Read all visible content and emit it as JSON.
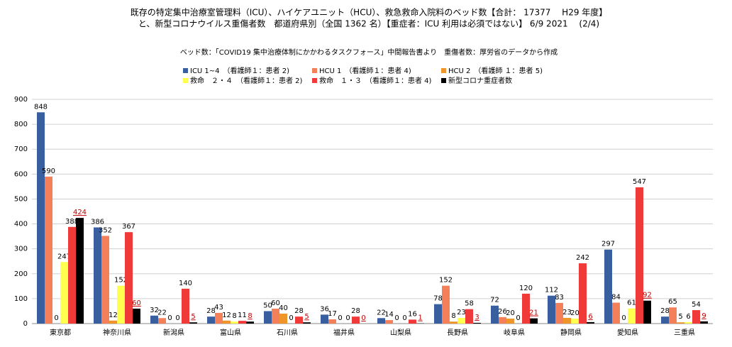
{
  "chart_data": {
    "type": "bar",
    "title": "既存の特定集中治療室管理料（ICU）、ハイケアユニット（HCU）、救急救命入院料のベッド数【合計： 17377　 H29 年度】",
    "title_line2": "と、新型コロナウイルス重傷者数　都道府県別（全国 1362 名）【重症者：ICU 利用は必須ではない】 6/9 2021　 (2/4)",
    "subtitle": "ベッド数：「COVID19 集中治療体制にかかわるタスクフォース」中間報告書より　重傷者数：厚労省のデータから作成",
    "categories": [
      "東京都",
      "神奈川県",
      "新潟県",
      "富山県",
      "石川県",
      "福井県",
      "山梨県",
      "長野県",
      "岐阜県",
      "静岡県",
      "愛知県",
      "三重県"
    ],
    "series": [
      {
        "name": "ICU 1~4　（看護師１：患者 2)",
        "color": "#3a5fa0",
        "values": [
          848,
          386,
          32,
          28,
          50,
          36,
          22,
          78,
          72,
          112,
          297,
          28
        ]
      },
      {
        "name": "HCU 1　（看護師１：患者 4)",
        "color": "#f4805a",
        "values": [
          590,
          352,
          22,
          43,
          60,
          17,
          14,
          152,
          26,
          83,
          84,
          65
        ]
      },
      {
        "name": "HCU 2　（看護師 １：患者 5)",
        "color": "#f0952a",
        "values": [
          0,
          12,
          0,
          12,
          40,
          0,
          0,
          8,
          20,
          23,
          0,
          5
        ]
      },
      {
        "name": "救命　２・４　（看護師１：患者 2)",
        "color": "#ffff50",
        "values": [
          247,
          152,
          0,
          8,
          0,
          0,
          0,
          23,
          0,
          20,
          61,
          6
        ]
      },
      {
        "name": "救命　１・３　（看護師１：患者 4)",
        "color": "#f03a3a",
        "values": [
          388,
          367,
          140,
          11,
          28,
          28,
          16,
          58,
          120,
          242,
          547,
          54
        ]
      },
      {
        "name": "新型コロナ重症者数",
        "color": "#000000",
        "values": [
          424,
          60,
          5,
          8,
          5,
          0,
          1,
          3,
          21,
          6,
          92,
          9
        ]
      }
    ],
    "ylim": [
      0,
      900
    ],
    "yticks": [
      0,
      100,
      200,
      300,
      400,
      500,
      600,
      700,
      800,
      900
    ],
    "grid": true
  }
}
